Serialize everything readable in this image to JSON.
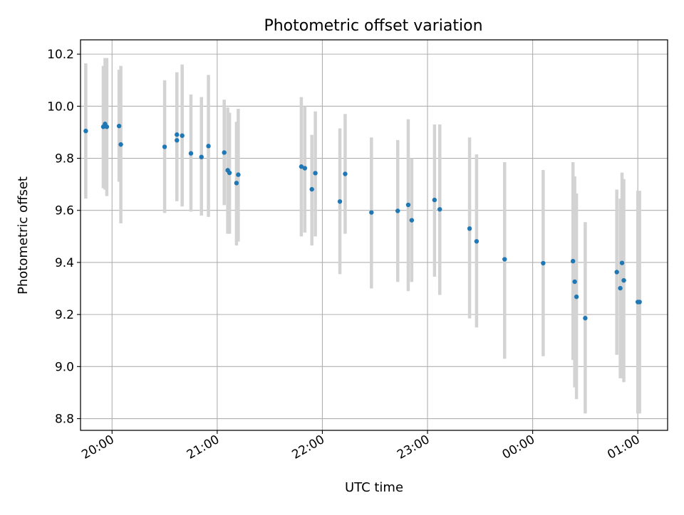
{
  "chart_data": {
    "type": "scatter",
    "title": "Photometric offset variation",
    "xlabel": "UTC time",
    "ylabel": "Photometric offset",
    "x_ticks": [
      "20:00",
      "21:00",
      "22:00",
      "23:00",
      "00:00",
      "01:00"
    ],
    "y_ticks": [
      "8.8",
      "9.0",
      "9.2",
      "9.4",
      "9.6",
      "9.8",
      "10.0",
      "10.2"
    ],
    "xlim": [
      "19:42",
      "01:17"
    ],
    "ylim": [
      8.755,
      10.255
    ],
    "grid": true,
    "colors": {
      "point": "#1f77b4",
      "errorbar": "#d3d3d3",
      "grid": "#b0b0b0"
    },
    "series": [
      {
        "x": [
          "19:45",
          "19:55",
          "19:56",
          "19:57",
          "20:04",
          "20:05",
          "20:30",
          "20:37",
          "20:37",
          "20:40",
          "20:45",
          "20:51",
          "20:55",
          "21:04",
          "21:06",
          "21:07",
          "21:11",
          "21:12",
          "21:48",
          "21:50",
          "21:54",
          "21:56",
          "22:10",
          "22:13",
          "22:28",
          "22:43",
          "22:49",
          "22:51",
          "23:04",
          "23:07",
          "23:24",
          "23:28",
          "23:44",
          "24:06",
          "24:23",
          "24:24",
          "24:25",
          "24:30",
          "24:48",
          "24:50",
          "24:51",
          "24:52",
          "25:00",
          "25:01"
        ],
        "y": [
          9.905,
          9.921,
          9.932,
          9.921,
          9.924,
          9.853,
          9.844,
          9.891,
          9.869,
          9.887,
          9.819,
          9.805,
          9.847,
          9.822,
          9.754,
          9.744,
          9.705,
          9.737,
          9.768,
          9.762,
          9.681,
          9.743,
          9.634,
          9.74,
          9.592,
          9.598,
          9.621,
          9.562,
          9.64,
          9.604,
          9.53,
          9.481,
          9.412,
          9.397,
          9.405,
          9.326,
          9.268,
          9.186,
          9.363,
          9.301,
          9.398,
          9.331,
          9.248,
          9.248
        ],
        "yerr_low": [
          9.645,
          9.685,
          9.68,
          9.655,
          9.71,
          9.55,
          9.59,
          9.635,
          9.65,
          9.615,
          9.595,
          9.58,
          9.575,
          9.62,
          9.51,
          9.51,
          9.465,
          9.48,
          9.5,
          9.515,
          9.465,
          9.5,
          9.355,
          9.51,
          9.3,
          9.325,
          9.29,
          9.325,
          9.345,
          9.275,
          9.185,
          9.15,
          9.03,
          9.04,
          9.025,
          8.92,
          8.875,
          8.82,
          9.045,
          8.955,
          8.955,
          8.94,
          8.82,
          8.82
        ],
        "yerr_high": [
          10.165,
          10.155,
          10.185,
          10.185,
          10.14,
          10.155,
          10.1,
          10.13,
          10.13,
          10.16,
          10.045,
          10.035,
          10.12,
          10.025,
          9.995,
          9.975,
          9.94,
          9.99,
          10.035,
          10.0,
          9.89,
          9.98,
          9.915,
          9.97,
          9.88,
          9.87,
          9.95,
          9.8,
          9.93,
          9.93,
          9.88,
          9.815,
          9.785,
          9.755,
          9.785,
          9.73,
          9.665,
          9.555,
          9.68,
          9.645,
          9.745,
          9.72,
          9.675,
          9.675
        ]
      }
    ]
  }
}
